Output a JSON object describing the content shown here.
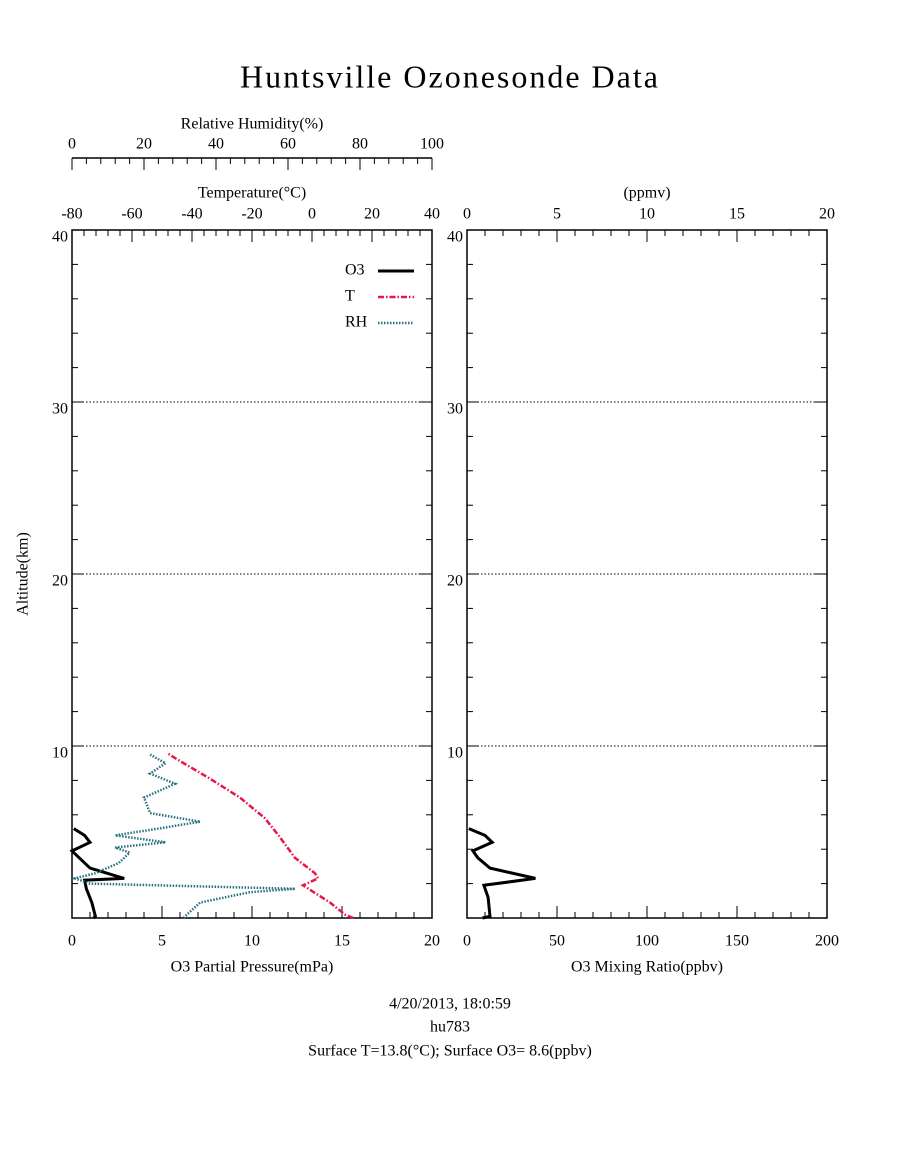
{
  "title": "Huntsville Ozonesonde Data",
  "footer": [
    "4/20/2013, 18:0:59",
    "hu783",
    "Surface T=13.8(°C); Surface O3= 8.6(ppbv)"
  ],
  "chart_data": [
    {
      "type": "line",
      "ylabel": "Altitude(km)",
      "ylim": [
        0,
        40
      ],
      "yticks": [
        10,
        20,
        30,
        40
      ],
      "grid": true,
      "xlabel": "O3 Partial Pressure(mPa)",
      "xlim": [
        0,
        20
      ],
      "xticks": [
        0,
        5,
        10,
        15,
        20
      ],
      "x2label": "Temperature(°C)",
      "x2lim": [
        -80,
        40
      ],
      "x2ticks": [
        -80,
        -60,
        -40,
        -20,
        0,
        20,
        40
      ],
      "x3label": "Relative Humidity(%)",
      "x3lim": [
        0,
        100
      ],
      "x3ticks": [
        0,
        20,
        40,
        60,
        80,
        100
      ],
      "legend": "upper right",
      "series": [
        {
          "name": "O3",
          "color": "#000000",
          "axis": "x",
          "style": "solid",
          "values": [
            1.2,
            1.3,
            1.1,
            0.8,
            0.7,
            2.9,
            1.0,
            0.4,
            0.0,
            1.0,
            0.7,
            0.1
          ],
          "altitude": [
            0,
            0.1,
            0.9,
            1.7,
            2.2,
            2.3,
            2.9,
            3.5,
            3.9,
            4.4,
            4.8,
            5.2
          ]
        },
        {
          "name": "T",
          "color": "#e8174a",
          "axis": "x2",
          "style": "dashdot",
          "values": [
            13.8,
            11,
            6,
            -3,
            2,
            1,
            -5.7,
            -10.7,
            -15.7,
            -24,
            -34,
            -45.7,
            -48.3
          ],
          "altitude": [
            0,
            0.2,
            0.9,
            1.9,
            2.3,
            2.6,
            3.5,
            4.7,
            5.8,
            7.0,
            8.1,
            9.3,
            9.6
          ]
        },
        {
          "name": "RH",
          "color": "#2a7080",
          "axis": "x3",
          "style": "dotted",
          "values": [
            31,
            31.4,
            35.6,
            49.4,
            62,
            5,
            0.8,
            6.4,
            13,
            16,
            12,
            26,
            12,
            24,
            35.6,
            21.7,
            20,
            28.6,
            21.7,
            26,
            21.7
          ],
          "altitude": [
            0,
            0.1,
            0.9,
            1.5,
            1.7,
            2.0,
            2.3,
            2.6,
            3.2,
            3.8,
            4.1,
            4.4,
            4.8,
            5.2,
            5.6,
            6.1,
            7.0,
            7.8,
            8.4,
            9.0,
            9.5
          ]
        }
      ]
    },
    {
      "type": "line",
      "ylim": [
        0,
        40
      ],
      "yticks": [
        10,
        20,
        30,
        40
      ],
      "grid": true,
      "xlabel": "O3 Mixing Ratio(ppbv)",
      "xlim": [
        0,
        200
      ],
      "xticks": [
        0,
        50,
        100,
        150,
        200
      ],
      "x2label": "(ppmv)",
      "x2lim": [
        0,
        20
      ],
      "x2ticks": [
        0,
        5,
        10,
        15,
        20
      ],
      "series": [
        {
          "color": "#000000",
          "axis": "x",
          "style": "solid",
          "values": [
            8.6,
            12.8,
            11.7,
            9.4,
            38,
            12.8,
            6,
            3.3,
            14,
            10,
            1
          ],
          "altitude": [
            0,
            0.1,
            1.2,
            1.9,
            2.3,
            2.9,
            3.5,
            3.9,
            4.4,
            4.8,
            5.2
          ]
        }
      ]
    }
  ]
}
